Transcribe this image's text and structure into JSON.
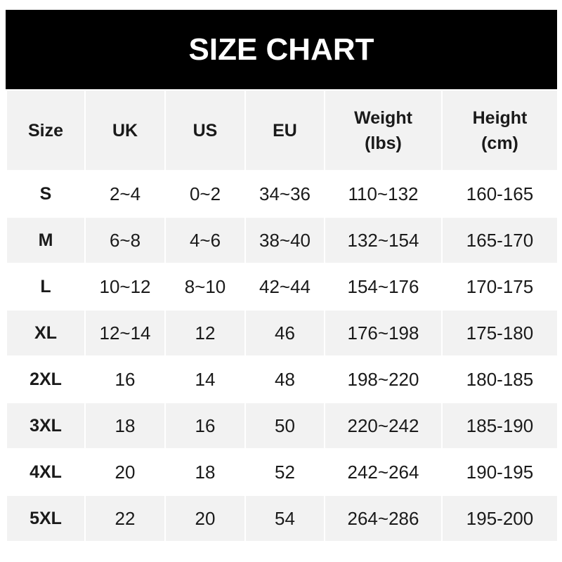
{
  "title": "SIZE CHART",
  "headers": [
    "Size",
    "UK",
    "US",
    "EU",
    "Weight (lbs)",
    "Height (cm)"
  ],
  "header_lines": [
    [
      "Size"
    ],
    [
      "UK"
    ],
    [
      "US"
    ],
    [
      "EU"
    ],
    [
      "Weight",
      "(lbs)"
    ],
    [
      "Height",
      "(cm)"
    ]
  ],
  "rows": [
    [
      "S",
      "2~4",
      "0~2",
      "34~36",
      "110~132",
      "160-165"
    ],
    [
      "M",
      "6~8",
      "4~6",
      "38~40",
      "132~154",
      "165-170"
    ],
    [
      "L",
      "10~12",
      "8~10",
      "42~44",
      "154~176",
      "170-175"
    ],
    [
      "XL",
      "12~14",
      "12",
      "46",
      "176~198",
      "175-180"
    ],
    [
      "2XL",
      "16",
      "14",
      "48",
      "198~220",
      "180-185"
    ],
    [
      "3XL",
      "18",
      "16",
      "50",
      "220~242",
      "185-190"
    ],
    [
      "4XL",
      "20",
      "18",
      "52",
      "242~264",
      "190-195"
    ],
    [
      "5XL",
      "22",
      "20",
      "54",
      "264~286",
      "195-200"
    ]
  ]
}
